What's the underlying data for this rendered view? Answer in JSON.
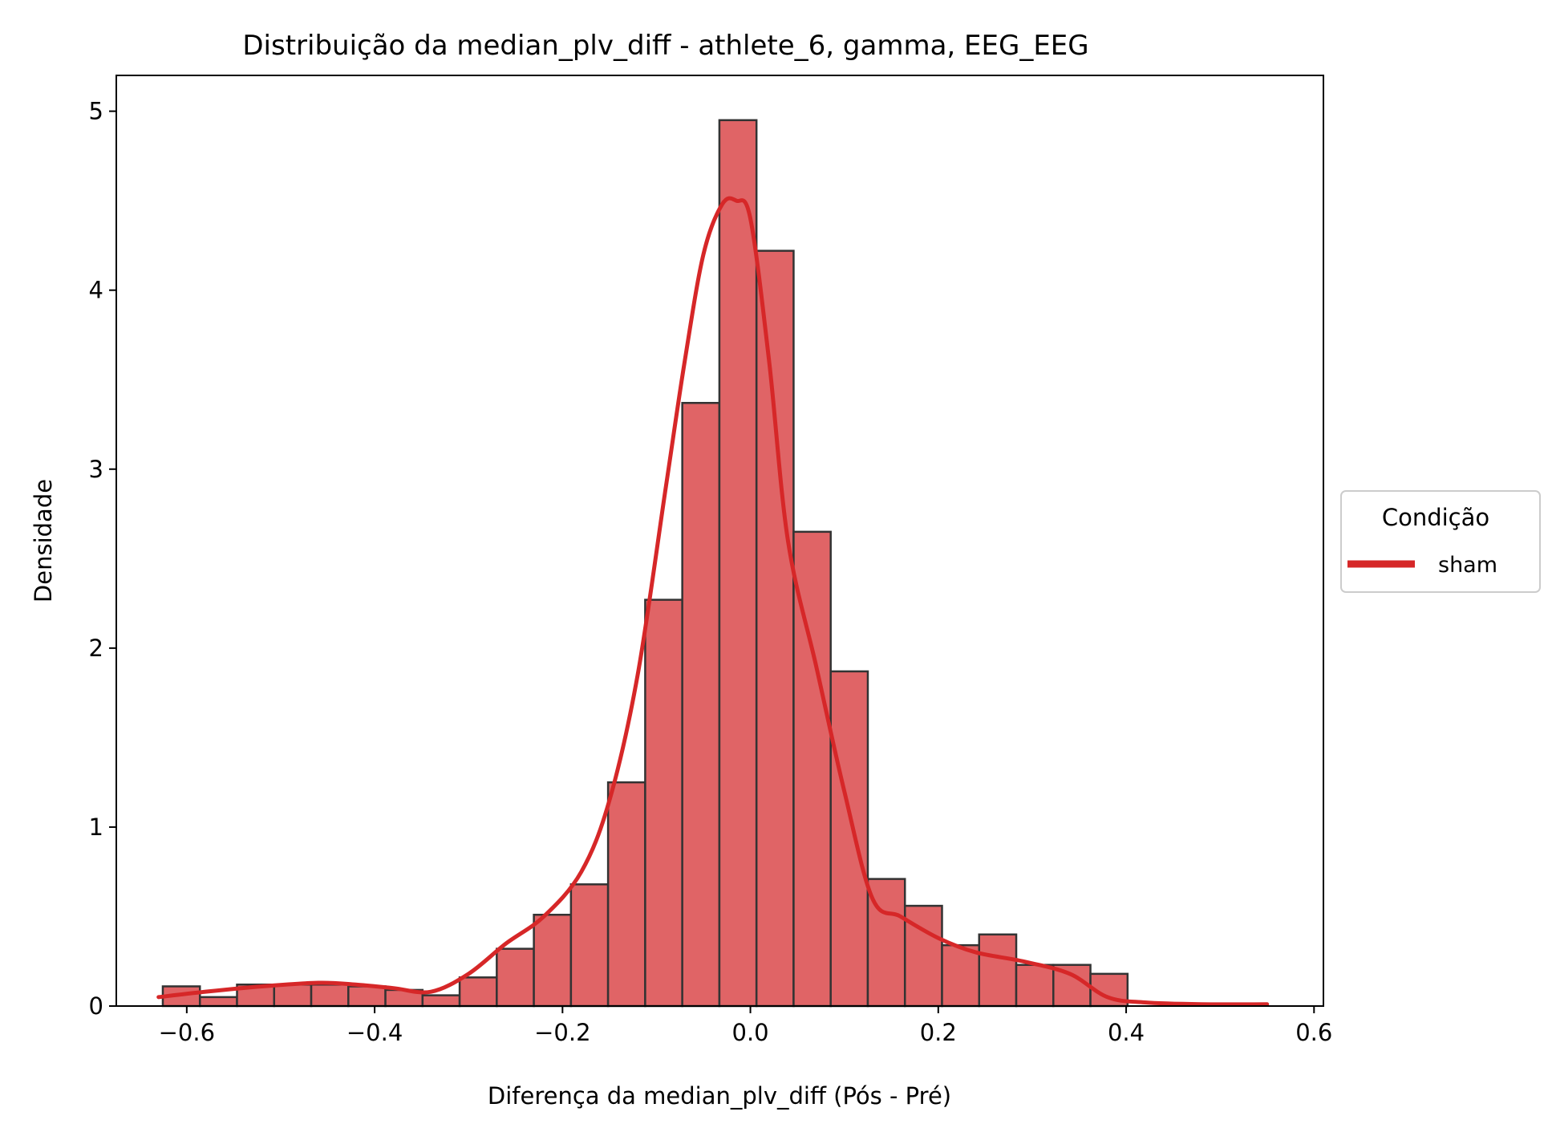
{
  "chart_data": {
    "type": "bar",
    "title": "Distribuição da median_plv_diff - athlete_6, gamma, EEG_EEG",
    "xlabel": "Diferença da median_plv_diff (Pós - Pré)",
    "ylabel": "Densidade",
    "xlim": [
      -0.675,
      0.61
    ],
    "ylim": [
      0,
      5.2
    ],
    "x_ticks": [
      -0.6,
      -0.4,
      -0.2,
      0.0,
      0.2,
      0.4,
      0.6
    ],
    "x_tick_labels": [
      "−0.6",
      "−0.4",
      "−0.2",
      "0.0",
      "0.2",
      "0.4",
      "0.6"
    ],
    "y_ticks": [
      0,
      1,
      2,
      3,
      4,
      5
    ],
    "y_tick_labels": [
      "0",
      "1",
      "2",
      "3",
      "4",
      "5"
    ],
    "grid": false,
    "legend": {
      "title": "Condição",
      "placement": "right-outside",
      "entries": [
        {
          "name": "sham",
          "color": "#d62728"
        }
      ]
    },
    "bar_color": "#e06466",
    "bar_edge_color": "#333333",
    "kde_color": "#d62728",
    "series": [
      {
        "name": "sham",
        "type": "histogram",
        "bin_edges": [
          -0.6255,
          -0.586,
          -0.5465,
          -0.507,
          -0.4675,
          -0.428,
          -0.3885,
          -0.349,
          -0.3095,
          -0.27,
          -0.2305,
          -0.191,
          -0.1515,
          -0.112,
          -0.0725,
          -0.033,
          0.0065,
          0.046,
          0.0855,
          0.125,
          0.1645,
          0.204,
          0.2435,
          0.283,
          0.3225,
          0.362,
          0.4015
        ],
        "values": [
          0.11,
          0.05,
          0.12,
          0.12,
          0.12,
          0.11,
          0.09,
          0.06,
          0.16,
          0.32,
          0.51,
          0.68,
          1.25,
          2.27,
          3.37,
          4.95,
          4.22,
          2.65,
          1.87,
          0.71,
          0.56,
          0.34,
          0.4,
          0.23,
          0.23,
          0.18
        ]
      },
      {
        "name": "sham",
        "type": "kde",
        "x": [
          -0.63,
          -0.58,
          -0.52,
          -0.46,
          -0.42,
          -0.38,
          -0.34,
          -0.3,
          -0.26,
          -0.22,
          -0.18,
          -0.15,
          -0.12,
          -0.09,
          -0.07,
          -0.05,
          -0.03,
          -0.015,
          0.0,
          0.02,
          0.04,
          0.07,
          0.1,
          0.13,
          0.16,
          0.2,
          0.24,
          0.29,
          0.34,
          0.38,
          0.42,
          0.48,
          0.55
        ],
        "y": [
          0.05,
          0.08,
          0.11,
          0.13,
          0.12,
          0.1,
          0.08,
          0.18,
          0.35,
          0.5,
          0.75,
          1.15,
          1.85,
          2.9,
          3.6,
          4.2,
          4.48,
          4.5,
          4.4,
          3.6,
          2.6,
          1.9,
          1.2,
          0.6,
          0.5,
          0.38,
          0.3,
          0.25,
          0.18,
          0.05,
          0.02,
          0.01,
          0.01
        ]
      }
    ]
  }
}
